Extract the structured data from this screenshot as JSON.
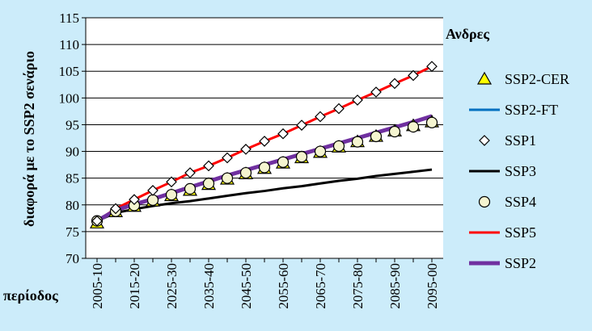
{
  "chart_data": {
    "type": "line",
    "title": "Ανδρες",
    "ylabel": "διαφορά με το SSP2 σενάριο",
    "xlabel": "περίοδος",
    "ylim": [
      70,
      115
    ],
    "yticks": [
      70,
      75,
      80,
      85,
      90,
      95,
      100,
      105,
      110,
      115
    ],
    "categories": [
      "2005-10",
      "2010-15",
      "2015-20",
      "2020-25",
      "2025-30",
      "2030-35",
      "2035-40",
      "2040-45",
      "2045-50",
      "2050-55",
      "2055-60",
      "2060-65",
      "2065-70",
      "2070-75",
      "2075-80",
      "2080-85",
      "2085-90",
      "2090-95",
      "2095-00"
    ],
    "xtick_labels": [
      "2005-10",
      "2015-20",
      "2025-30",
      "2035-40",
      "2045-50",
      "2055-60",
      "2065-70",
      "2075-80",
      "2085-90",
      "2095-00"
    ],
    "grid": "horizontal",
    "legend_position": "right",
    "series": [
      {
        "name": "SSP2-CER",
        "marker": "triangle",
        "color": "#ffff00",
        "values": [
          76.6,
          78.7,
          79.7,
          80.7,
          81.7,
          82.7,
          83.8,
          84.8,
          85.8,
          86.8,
          87.8,
          88.8,
          89.8,
          90.8,
          91.8,
          92.8,
          93.8,
          94.8,
          95.5
        ]
      },
      {
        "name": "SSP2-FT",
        "marker": "none",
        "color": "#0070c0",
        "values": [
          77.0,
          79.0,
          80.2,
          81.2,
          82.3,
          83.4,
          84.5,
          85.6,
          86.6,
          87.6,
          88.6,
          89.6,
          90.6,
          91.6,
          92.6,
          93.6,
          94.6,
          95.6,
          96.6
        ]
      },
      {
        "name": "SSP1",
        "marker": "diamond",
        "color": "#ffffff",
        "values": [
          77.0,
          79.3,
          81.0,
          82.7,
          84.3,
          86.0,
          87.3,
          88.8,
          90.4,
          91.9,
          93.3,
          94.9,
          96.5,
          98.0,
          99.6,
          101.1,
          102.7,
          104.2,
          105.9
        ]
      },
      {
        "name": "SSP3",
        "marker": "none",
        "color": "#000000",
        "values": [
          77.0,
          78.5,
          79.2,
          79.8,
          80.3,
          80.7,
          81.2,
          81.7,
          82.2,
          82.6,
          83.1,
          83.5,
          84.0,
          84.5,
          84.9,
          85.4,
          85.8,
          86.2,
          86.6
        ]
      },
      {
        "name": "SSP4",
        "marker": "circle",
        "color": "#f5f5d0",
        "values": [
          77.0,
          78.8,
          79.9,
          80.9,
          81.9,
          83.0,
          84.0,
          85.0,
          86.0,
          87.0,
          88.0,
          89.0,
          90.0,
          91.0,
          91.8,
          92.8,
          93.7,
          94.6,
          95.4
        ]
      },
      {
        "name": "SSP5",
        "marker": "none",
        "color": "#ff0000",
        "values": [
          77.0,
          79.3,
          81.0,
          82.7,
          84.3,
          86.0,
          87.3,
          88.8,
          90.4,
          91.9,
          93.3,
          94.9,
          96.5,
          98.0,
          99.6,
          101.1,
          102.7,
          104.2,
          105.9
        ]
      },
      {
        "name": "SSP2",
        "marker": "none",
        "color": "#7030a0",
        "values": [
          77.0,
          79.0,
          80.1,
          81.1,
          82.2,
          83.3,
          84.4,
          85.5,
          86.5,
          87.5,
          88.5,
          89.5,
          90.5,
          91.5,
          92.5,
          93.5,
          94.5,
          95.5,
          96.6
        ]
      }
    ]
  }
}
